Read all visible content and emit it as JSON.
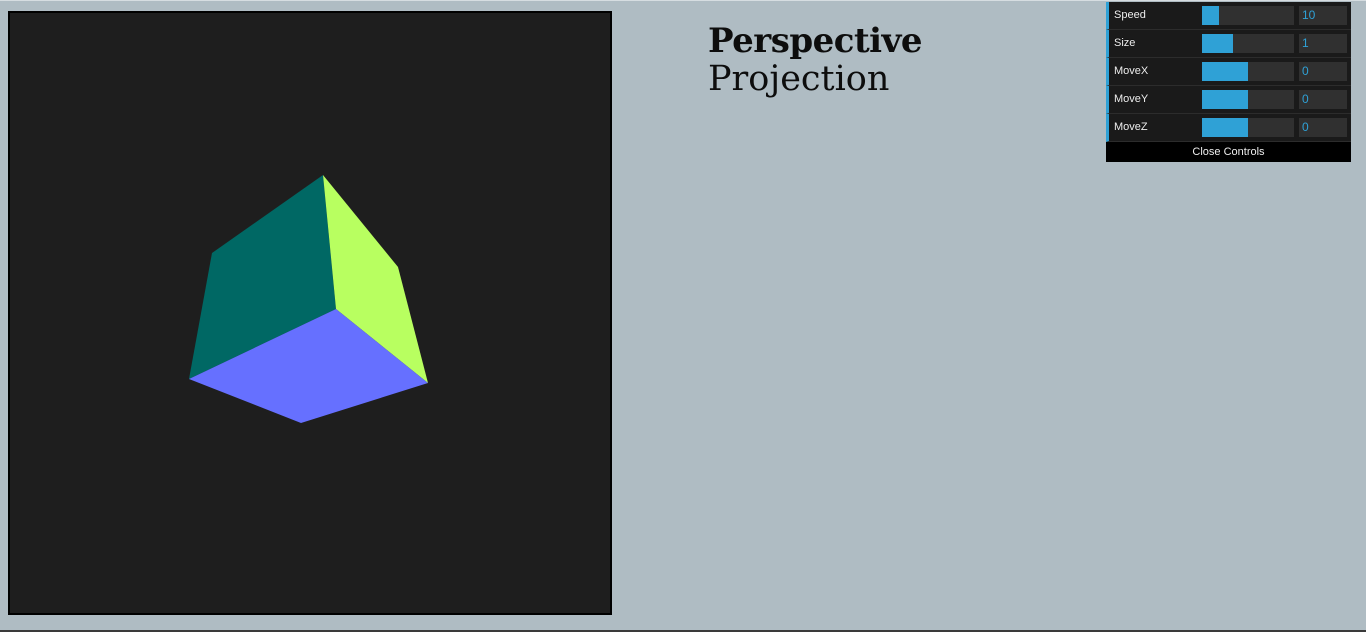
{
  "title": {
    "line1": "Perspective",
    "line2": "Projection"
  },
  "controls": {
    "rows": [
      {
        "label": "Speed",
        "value": "10",
        "fill_fraction": 0.18
      },
      {
        "label": "Size",
        "value": "1",
        "fill_fraction": 0.34
      },
      {
        "label": "MoveX",
        "value": "0",
        "fill_fraction": 0.5
      },
      {
        "label": "MoveY",
        "value": "0",
        "fill_fraction": 0.5
      },
      {
        "label": "MoveZ",
        "value": "0",
        "fill_fraction": 0.5
      }
    ],
    "close_label": "Close Controls"
  },
  "scene": {
    "background": "#1e1e1e",
    "cube_faces": {
      "left": "#006864",
      "right": "#b8ff60",
      "bottom": "#6670ff"
    }
  },
  "colors": {
    "page_bg": "#afbcc3",
    "accent": "#2fa1d6"
  }
}
